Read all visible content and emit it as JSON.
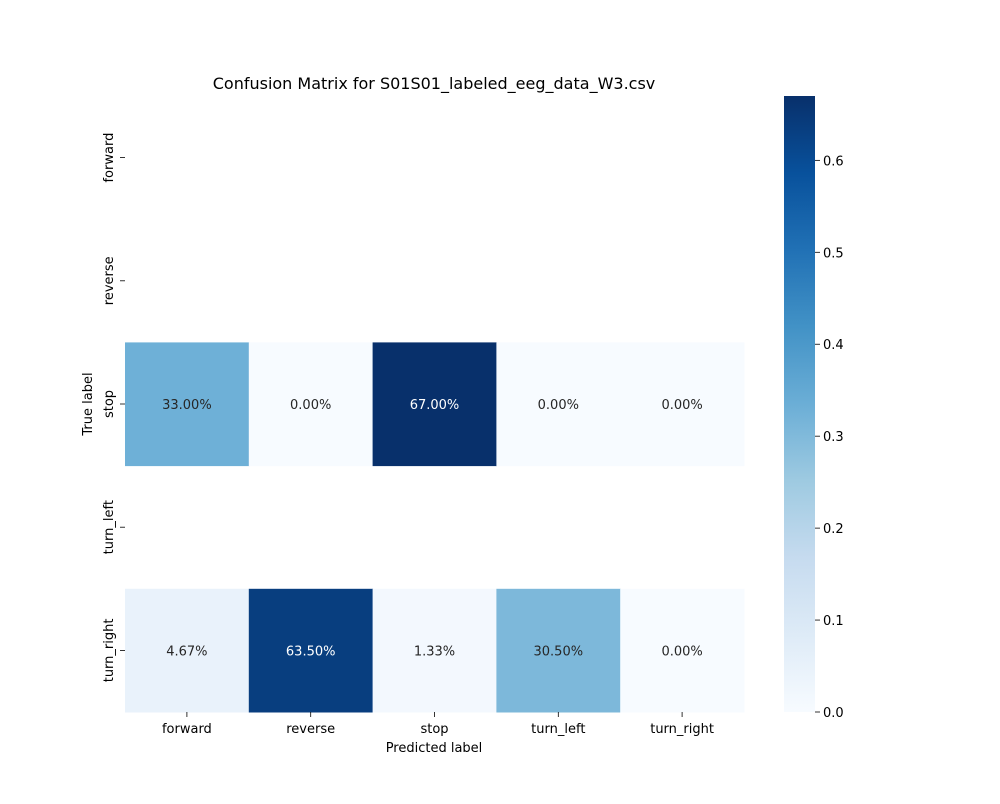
{
  "chart_data": {
    "type": "heatmap",
    "title": "Confusion Matrix for S01S01_labeled_eeg_data_W3.csv",
    "xlabel": "Predicted label",
    "ylabel": "True label",
    "x_categories": [
      "forward",
      "reverse",
      "stop",
      "turn_left",
      "turn_right"
    ],
    "y_categories": [
      "forward",
      "reverse",
      "stop",
      "turn_left",
      "turn_right"
    ],
    "values": [
      [
        null,
        null,
        null,
        null,
        null
      ],
      [
        null,
        null,
        null,
        null,
        null
      ],
      [
        0.33,
        0.0,
        0.67,
        0.0,
        0.0
      ],
      [
        null,
        null,
        null,
        null,
        null
      ],
      [
        0.0467,
        0.635,
        0.0133,
        0.305,
        0.0
      ]
    ],
    "annotations": [
      [
        null,
        null,
        null,
        null,
        null
      ],
      [
        null,
        null,
        null,
        null,
        null
      ],
      [
        "33.00%",
        "0.00%",
        "67.00%",
        "0.00%",
        "0.00%"
      ],
      [
        null,
        null,
        null,
        null,
        null
      ],
      [
        "4.67%",
        "63.50%",
        "1.33%",
        "30.50%",
        "0.00%"
      ]
    ],
    "colormap": "Blues",
    "colorbar": {
      "range": [
        0,
        0.67
      ],
      "ticks": [
        "0.0",
        "0.1",
        "0.2",
        "0.3",
        "0.4",
        "0.5",
        "0.6"
      ]
    },
    "grid": false
  }
}
